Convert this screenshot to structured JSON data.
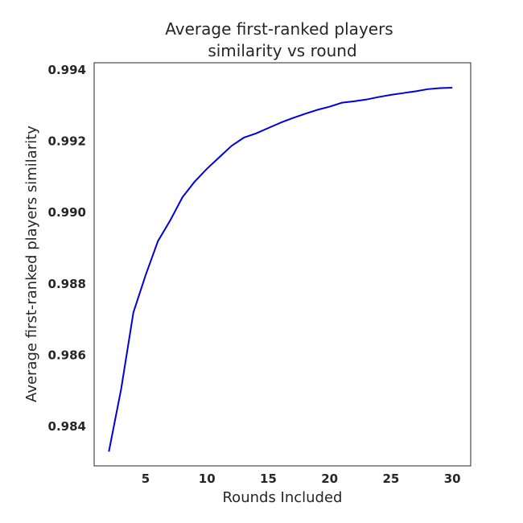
{
  "chart_data": {
    "type": "line",
    "title": [
      "Average first-ranked players",
      "similarity vs round"
    ],
    "xlabel": "Rounds Included",
    "ylabel": "Average first-ranked players similarity",
    "xlim": [
      0.8,
      31.5
    ],
    "ylim": [
      0.9829,
      0.9942
    ],
    "xticks": [
      5,
      10,
      15,
      20,
      25,
      30
    ],
    "yticks": [
      0.984,
      0.986,
      0.988,
      0.99,
      0.992,
      0.994
    ],
    "ytick_labels": [
      "0.984",
      "0.986",
      "0.988",
      "0.990",
      "0.992",
      "0.994"
    ],
    "grid": false,
    "series": [
      {
        "color": "#0000dd",
        "x": [
          2,
          3,
          4,
          5,
          6,
          7,
          8,
          9,
          10,
          11,
          12,
          13,
          14,
          15,
          16,
          17,
          18,
          19,
          20,
          21,
          22,
          23,
          24,
          25,
          26,
          27,
          28,
          29,
          30
        ],
        "y": [
          0.9833,
          0.98505,
          0.9872,
          0.98825,
          0.9892,
          0.98978,
          0.99043,
          0.99087,
          0.99123,
          0.99155,
          0.99187,
          0.9921,
          0.99222,
          0.99237,
          0.99252,
          0.99265,
          0.99277,
          0.99288,
          0.99297,
          0.99308,
          0.99312,
          0.99317,
          0.99324,
          0.9933,
          0.99335,
          0.9934,
          0.99346,
          0.99349,
          0.9935
        ]
      }
    ]
  }
}
